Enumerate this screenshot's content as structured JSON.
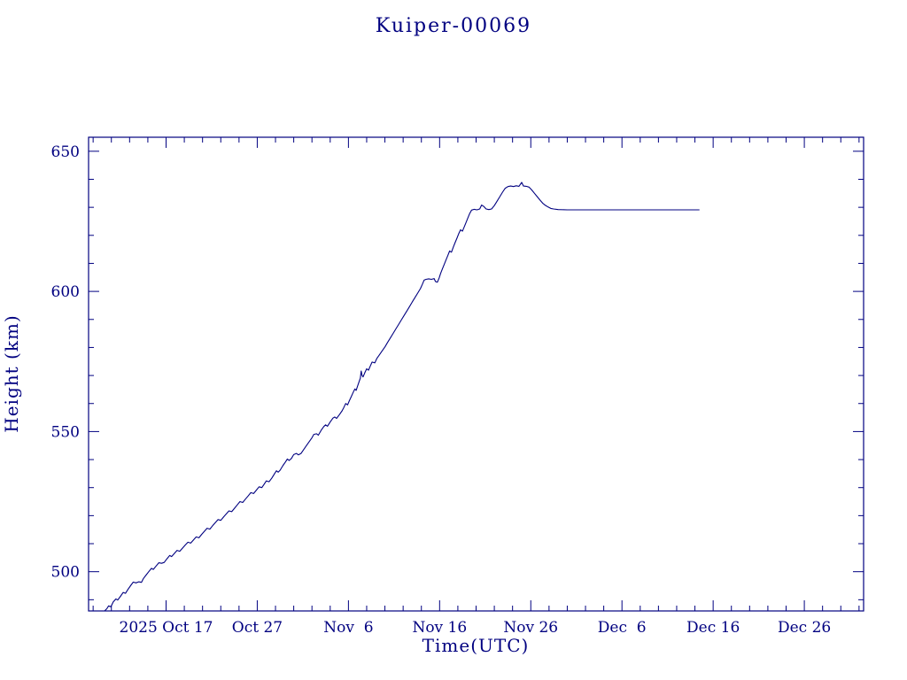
{
  "page": {
    "background": "#ffffff",
    "accent_color": "#000080"
  },
  "chart_data": {
    "type": "line",
    "title": "Kuiper-00069",
    "xlabel": "Time(UTC)",
    "ylabel": "Height (km)",
    "line_color": "#000080",
    "grid": false,
    "legend": "none",
    "x_range_days": [
      0,
      85
    ],
    "x_epoch_note": "x axis in days; tick positions correspond to labeled UTC dates",
    "x_ticks": [
      {
        "t": 8.5,
        "label": "2025 Oct 17"
      },
      {
        "t": 18.5,
        "label": "Oct 27"
      },
      {
        "t": 28.5,
        "label": "Nov  6"
      },
      {
        "t": 38.5,
        "label": "Nov 16"
      },
      {
        "t": 48.5,
        "label": "Nov 26"
      },
      {
        "t": 58.5,
        "label": "Dec  6"
      },
      {
        "t": 68.5,
        "label": "Dec 16"
      },
      {
        "t": 78.5,
        "label": "Dec 26"
      }
    ],
    "x_minor_tick_days": 2,
    "y_range": [
      486,
      655
    ],
    "y_ticks": [
      {
        "v": 500,
        "label": "500"
      },
      {
        "v": 550,
        "label": "550"
      },
      {
        "v": 600,
        "label": "600"
      },
      {
        "v": 650,
        "label": "650"
      }
    ],
    "y_minor_tick_km": 10,
    "series": [
      {
        "name": "height",
        "points": [
          [
            1.75,
            486
          ],
          [
            2.0,
            486.8
          ],
          [
            2.2,
            487.8
          ],
          [
            2.45,
            487.5
          ],
          [
            2.7,
            489.2
          ],
          [
            3.0,
            490.3
          ],
          [
            3.2,
            489.9
          ],
          [
            3.5,
            491.2
          ],
          [
            3.8,
            492.6
          ],
          [
            4.05,
            492.3
          ],
          [
            4.3,
            493.6
          ],
          [
            4.6,
            495.0
          ],
          [
            4.9,
            496.3
          ],
          [
            5.2,
            496.0
          ],
          [
            5.5,
            496.4
          ],
          [
            5.8,
            496.2
          ],
          [
            6.0,
            497.5
          ],
          [
            6.3,
            498.8
          ],
          [
            6.6,
            500.0
          ],
          [
            6.9,
            501.2
          ],
          [
            7.1,
            500.8
          ],
          [
            7.4,
            502.0
          ],
          [
            7.7,
            503.2
          ],
          [
            8.0,
            503.0
          ],
          [
            8.3,
            503.3
          ],
          [
            8.6,
            504.6
          ],
          [
            8.9,
            505.8
          ],
          [
            9.1,
            505.4
          ],
          [
            9.4,
            506.5
          ],
          [
            9.7,
            507.6
          ],
          [
            10.0,
            507.3
          ],
          [
            10.3,
            508.4
          ],
          [
            10.6,
            509.5
          ],
          [
            10.9,
            510.5
          ],
          [
            11.2,
            510.2
          ],
          [
            11.5,
            511.3
          ],
          [
            11.8,
            512.4
          ],
          [
            12.1,
            512.1
          ],
          [
            12.4,
            513.3
          ],
          [
            12.7,
            514.4
          ],
          [
            13.0,
            515.5
          ],
          [
            13.3,
            515.2
          ],
          [
            13.6,
            516.4
          ],
          [
            13.9,
            517.5
          ],
          [
            14.2,
            518.6
          ],
          [
            14.5,
            518.3
          ],
          [
            14.8,
            519.5
          ],
          [
            15.1,
            520.6
          ],
          [
            15.4,
            521.7
          ],
          [
            15.7,
            521.4
          ],
          [
            16.0,
            522.6
          ],
          [
            16.3,
            523.8
          ],
          [
            16.6,
            525.0
          ],
          [
            16.9,
            524.7
          ],
          [
            17.2,
            525.9
          ],
          [
            17.5,
            527.0
          ],
          [
            17.8,
            528.2
          ],
          [
            18.1,
            527.9
          ],
          [
            18.4,
            529.1
          ],
          [
            18.7,
            530.3
          ],
          [
            19.0,
            530.0
          ],
          [
            19.25,
            531.2
          ],
          [
            19.5,
            532.4
          ],
          [
            19.8,
            532.1
          ],
          [
            20.1,
            533.4
          ],
          [
            20.4,
            535.0
          ],
          [
            20.6,
            536.0
          ],
          [
            20.8,
            535.5
          ],
          [
            21.0,
            536.2
          ],
          [
            21.3,
            537.8
          ],
          [
            21.6,
            539.2
          ],
          [
            21.8,
            540.2
          ],
          [
            22.0,
            539.7
          ],
          [
            22.25,
            540.4
          ],
          [
            22.5,
            541.8
          ],
          [
            22.8,
            542.2
          ],
          [
            23.0,
            541.7
          ],
          [
            23.3,
            542.2
          ],
          [
            23.6,
            543.6
          ],
          [
            23.9,
            545.0
          ],
          [
            24.2,
            546.4
          ],
          [
            24.5,
            547.8
          ],
          [
            24.7,
            549.0
          ],
          [
            25.0,
            549.2
          ],
          [
            25.2,
            548.7
          ],
          [
            25.5,
            550.4
          ],
          [
            25.8,
            551.8
          ],
          [
            26.0,
            552.4
          ],
          [
            26.2,
            551.9
          ],
          [
            26.5,
            553.4
          ],
          [
            26.8,
            554.8
          ],
          [
            27.0,
            555.2
          ],
          [
            27.2,
            554.7
          ],
          [
            27.5,
            556.0
          ],
          [
            27.8,
            557.4
          ],
          [
            28.0,
            558.6
          ],
          [
            28.2,
            560.0
          ],
          [
            28.4,
            559.5
          ],
          [
            28.6,
            561.0
          ],
          [
            28.8,
            562.4
          ],
          [
            29.0,
            563.8
          ],
          [
            29.2,
            565.2
          ],
          [
            29.35,
            564.7
          ],
          [
            29.5,
            566.2
          ],
          [
            29.65,
            567.6
          ],
          [
            29.8,
            569.0
          ],
          [
            29.9,
            571.6
          ],
          [
            30.0,
            570.0
          ],
          [
            30.1,
            569.5
          ],
          [
            30.3,
            571.0
          ],
          [
            30.5,
            572.4
          ],
          [
            30.7,
            571.9
          ],
          [
            30.9,
            573.4
          ],
          [
            31.1,
            574.8
          ],
          [
            31.4,
            574.5
          ],
          [
            31.6,
            576.0
          ],
          [
            31.9,
            577.4
          ],
          [
            32.2,
            578.8
          ],
          [
            32.5,
            580.2
          ],
          [
            32.8,
            581.8
          ],
          [
            33.1,
            583.4
          ],
          [
            33.4,
            585.0
          ],
          [
            33.7,
            586.6
          ],
          [
            34.0,
            588.2
          ],
          [
            34.3,
            589.8
          ],
          [
            34.6,
            591.4
          ],
          [
            34.9,
            593.0
          ],
          [
            35.2,
            594.6
          ],
          [
            35.5,
            596.2
          ],
          [
            35.8,
            597.8
          ],
          [
            36.1,
            599.4
          ],
          [
            36.4,
            601.0
          ],
          [
            36.6,
            602.5
          ],
          [
            36.8,
            604.0
          ],
          [
            37.0,
            604.3
          ],
          [
            37.3,
            604.5
          ],
          [
            37.6,
            604.3
          ],
          [
            37.9,
            604.6
          ],
          [
            38.05,
            603.5
          ],
          [
            38.25,
            603.3
          ],
          [
            38.45,
            604.8
          ],
          [
            38.6,
            606.4
          ],
          [
            38.8,
            608.0
          ],
          [
            39.0,
            609.6
          ],
          [
            39.2,
            611.2
          ],
          [
            39.4,
            612.8
          ],
          [
            39.6,
            614.4
          ],
          [
            39.8,
            614.0
          ],
          [
            40.0,
            615.8
          ],
          [
            40.2,
            617.4
          ],
          [
            40.4,
            619.0
          ],
          [
            40.6,
            620.6
          ],
          [
            40.8,
            622.0
          ],
          [
            41.0,
            621.5
          ],
          [
            41.2,
            623.0
          ],
          [
            41.4,
            624.6
          ],
          [
            41.6,
            626.2
          ],
          [
            41.8,
            627.8
          ],
          [
            42.0,
            629.0
          ],
          [
            42.3,
            629.3
          ],
          [
            42.6,
            629.1
          ],
          [
            42.9,
            629.4
          ],
          [
            43.1,
            630.8
          ],
          [
            43.35,
            630.3
          ],
          [
            43.6,
            629.4
          ],
          [
            43.9,
            629.2
          ],
          [
            44.2,
            629.4
          ],
          [
            44.5,
            630.6
          ],
          [
            44.8,
            632.2
          ],
          [
            45.1,
            633.8
          ],
          [
            45.4,
            635.4
          ],
          [
            45.7,
            636.8
          ],
          [
            46.0,
            637.4
          ],
          [
            46.3,
            637.6
          ],
          [
            46.6,
            637.4
          ],
          [
            46.9,
            637.7
          ],
          [
            47.2,
            637.5
          ],
          [
            47.5,
            638.9
          ],
          [
            47.7,
            637.6
          ],
          [
            48.0,
            637.5
          ],
          [
            48.3,
            637.2
          ],
          [
            48.6,
            636.2
          ],
          [
            48.9,
            635.0
          ],
          [
            49.2,
            633.8
          ],
          [
            49.5,
            632.6
          ],
          [
            49.8,
            631.5
          ],
          [
            50.1,
            630.7
          ],
          [
            50.4,
            630.1
          ],
          [
            50.7,
            629.6
          ],
          [
            51.0,
            629.4
          ],
          [
            51.5,
            629.2
          ],
          [
            52.5,
            629.1
          ],
          [
            55.0,
            629.1
          ],
          [
            60.0,
            629.1
          ],
          [
            67.0,
            629.1
          ]
        ]
      }
    ]
  }
}
